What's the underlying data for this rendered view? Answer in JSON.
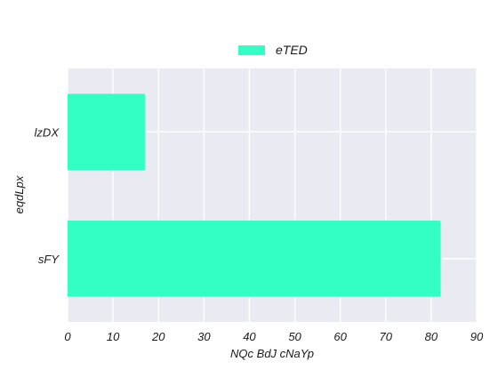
{
  "chart_data": {
    "type": "bar",
    "orientation": "horizontal",
    "categories": [
      "lzDX",
      "sFY"
    ],
    "series": [
      {
        "name": "eTED",
        "values": [
          17,
          82
        ],
        "color": "#33ffc4"
      }
    ],
    "title": "",
    "xlabel": "NQc BdJ cNaYp",
    "ylabel": "eqdLpx",
    "xlim": [
      0,
      90
    ],
    "xticks": [
      0,
      10,
      20,
      30,
      40,
      50,
      60,
      70,
      80,
      90
    ],
    "grid": true,
    "legend_position": "top-center",
    "background_color": "#eaeaf2",
    "grid_color": "#ffffff"
  }
}
